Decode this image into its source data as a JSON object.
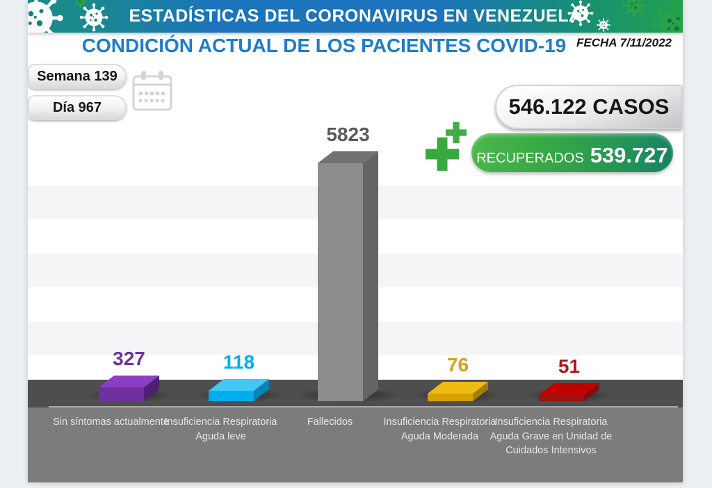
{
  "banner": {
    "title": "ESTADÍSTICAS DEL CORONAVIRUS EN VENEZUELA"
  },
  "page": {
    "title": "CONDICIÓN ACTUAL DE LOS PACIENTES COVID-19",
    "date": "FECHA 7/11/2022"
  },
  "counters": {
    "week": "Semana 139",
    "day": "Día 967"
  },
  "totals": {
    "cases": "546.122 CASOS",
    "recovered_label": "RECUPERADOS",
    "recovered_value": "539.727"
  },
  "icons": {
    "virus": "virus-icon",
    "calendar": "calendar-icon",
    "plus": "plus-cross-icon"
  },
  "colors": {
    "banner_teal": "#1a8a8c",
    "banner_blue": "#1b74bc",
    "banner_green": "#22a14e",
    "title_blue": "#1e7dc8",
    "recovered_green": "#35a744",
    "plus_green": "#3aa93d",
    "platform_dark": "#4e4e4e",
    "label_strip_gray": "#7c7c7c"
  },
  "chart_data": {
    "type": "bar",
    "style": "3d-boxes",
    "title": "CONDICIÓN ACTUAL DE LOS PACIENTES COVID-19",
    "categories": [
      "Sin síntomas actualmente",
      "Insuficiencia Respiratoria Aguda leve",
      "Fallecidos",
      "Insuficiencia Respiratoria Aguda Moderada",
      "Insuficiencia Respiratoria Aguda Grave en Unidad de Cuidados Intensivos"
    ],
    "values": [
      327,
      118,
      5823,
      76,
      51
    ],
    "value_labels": [
      "327",
      "118",
      "5823",
      "76",
      "51"
    ],
    "bar_colors": [
      {
        "front": "#7030a0",
        "top": "#8a3fc4",
        "side": "#4f2074",
        "value": "#7030a0"
      },
      {
        "front": "#00aeef",
        "top": "#41c8f4",
        "side": "#0384b4",
        "value": "#00aeef"
      },
      {
        "front": "#8c8c8c",
        "top": "#727272",
        "side": "#646464",
        "value": "#595959"
      },
      {
        "front": "#d7a100",
        "top": "#efbc13",
        "side": "#a87e00",
        "value": "#dc9e1f"
      },
      {
        "front": "#9c1313",
        "top": "#c00000",
        "side": "#7e0e0e",
        "value": "#b01818"
      }
    ],
    "xlabel": "",
    "ylabel": "",
    "ylim": [
      0,
      5823
    ],
    "grid": "off",
    "legend": "none"
  }
}
